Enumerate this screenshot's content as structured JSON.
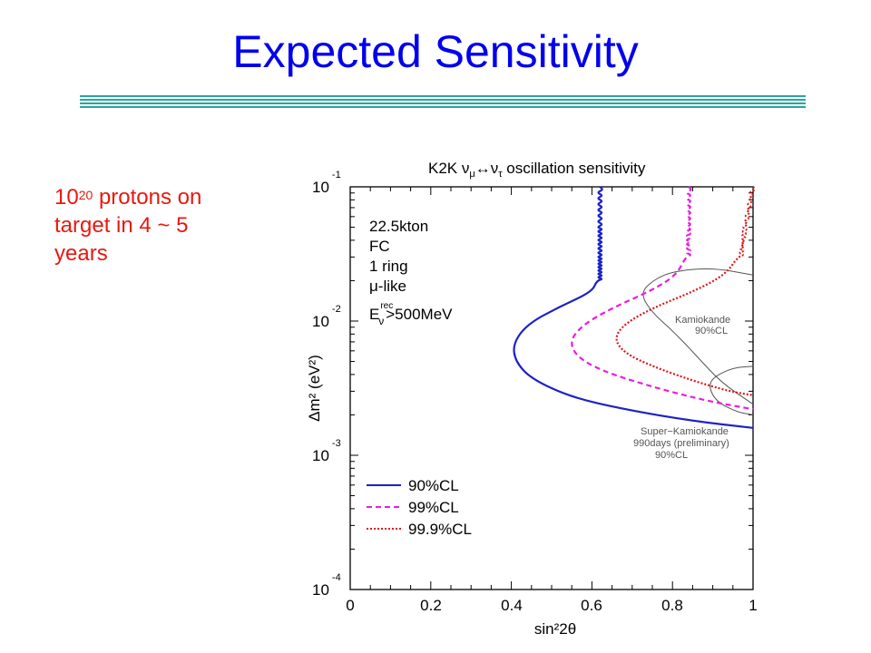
{
  "slide": {
    "title": "Expected Sensitivity",
    "note": {
      "base": "10",
      "exponent": "20",
      "text_line1": " protons on",
      "text_line2": "target in 4 ~ 5",
      "text_line3": "years"
    }
  },
  "colors": {
    "title": "#0000ee",
    "note": "#e8180f",
    "rule": "#2aa4a4",
    "cl90": "#1c22c8",
    "cl99": "#e81ee0",
    "cl999": "#e01818",
    "reference": "#555555"
  },
  "chart_data": {
    "type": "line",
    "title": "K2K ν_μ↔ν_τ oscillation sensitivity",
    "title_parts": {
      "prefix": "K2K ν",
      "sub1": "μ",
      "arrow": "↔ν",
      "sub2": "τ",
      "suffix": " oscillation sensitivity"
    },
    "xlabel": "sin²2θ",
    "ylabel": "Δm² (eV²)",
    "xlim": [
      0,
      1
    ],
    "ylim": [
      0.0001,
      0.1
    ],
    "yscale": "log",
    "x_ticks": [
      "0",
      "0.2",
      "0.4",
      "0.6",
      "0.8",
      "1"
    ],
    "y_ticks": [
      {
        "base": "10",
        "exp": "-1"
      },
      {
        "base": "10",
        "exp": "-2"
      },
      {
        "base": "10",
        "exp": "-3"
      },
      {
        "base": "10",
        "exp": "-4"
      }
    ],
    "conditions": {
      "line1": "22.5kton",
      "line2": "FC",
      "line3": "1 ring",
      "line4": "μ-like",
      "line5_main": "E",
      "line5_sup": "rec",
      "line5_sub": "ν",
      "line5_rest": ">500MeV"
    },
    "legend": [
      {
        "label": "90%CL",
        "style": "solid"
      },
      {
        "label": "99%CL",
        "style": "dashed"
      },
      {
        "label": "99.9%CL",
        "style": "dotted"
      }
    ],
    "series": [
      {
        "name": "90%CL",
        "points": [
          [
            0.62,
            0.1
          ],
          [
            0.62,
            0.05
          ],
          [
            0.62,
            0.03
          ],
          [
            0.62,
            0.02
          ],
          [
            0.6,
            0.0165
          ],
          [
            0.52,
            0.0128
          ],
          [
            0.44,
            0.0095
          ],
          [
            0.404,
            0.0068
          ],
          [
            0.41,
            0.005
          ],
          [
            0.45,
            0.0037
          ],
          [
            0.55,
            0.0027
          ],
          [
            0.68,
            0.0022
          ],
          [
            0.85,
            0.0018
          ],
          [
            1.0,
            0.0016
          ]
        ]
      },
      {
        "name": "99%CL",
        "points": [
          [
            0.84,
            0.1
          ],
          [
            0.84,
            0.05
          ],
          [
            0.84,
            0.03
          ],
          [
            0.81,
            0.022
          ],
          [
            0.75,
            0.017
          ],
          [
            0.65,
            0.0125
          ],
          [
            0.58,
            0.0095
          ],
          [
            0.545,
            0.0072
          ],
          [
            0.56,
            0.0055
          ],
          [
            0.62,
            0.0043
          ],
          [
            0.74,
            0.0033
          ],
          [
            0.87,
            0.0026
          ],
          [
            1.0,
            0.0022
          ]
        ]
      },
      {
        "name": "99.9%CL",
        "points": [
          [
            1.0,
            0.1
          ],
          [
            0.98,
            0.05
          ],
          [
            0.97,
            0.03
          ],
          [
            0.93,
            0.022
          ],
          [
            0.85,
            0.0165
          ],
          [
            0.75,
            0.0125
          ],
          [
            0.68,
            0.0095
          ],
          [
            0.655,
            0.0074
          ],
          [
            0.68,
            0.0058
          ],
          [
            0.75,
            0.0046
          ],
          [
            0.85,
            0.0036
          ],
          [
            0.94,
            0.003
          ],
          [
            1.0,
            0.0028
          ]
        ]
      }
    ],
    "reference_contours": [
      {
        "name": "Kamiokande 90%CL",
        "label_line1": "Kamiokande",
        "label_line2": "90%CL",
        "points": [
          [
            1.0,
            0.022
          ],
          [
            0.9,
            0.025
          ],
          [
            0.8,
            0.0235
          ],
          [
            0.75,
            0.02
          ],
          [
            0.72,
            0.016
          ],
          [
            0.75,
            0.0115
          ],
          [
            0.8,
            0.0085
          ],
          [
            0.86,
            0.0055
          ],
          [
            0.92,
            0.0035
          ],
          [
            1.0,
            0.0024
          ]
        ]
      },
      {
        "name": "Super-Kamiokande 990days (preliminary) 90%CL",
        "label_line1": "Super−Kamiokande",
        "label_line2": "990days (preliminary)",
        "label_line3": "90%CL",
        "points": [
          [
            1.0,
            0.0046
          ],
          [
            0.95,
            0.0045
          ],
          [
            0.9,
            0.0038
          ],
          [
            0.89,
            0.0032
          ],
          [
            0.91,
            0.0025
          ],
          [
            0.96,
            0.0021
          ],
          [
            1.0,
            0.002
          ]
        ]
      }
    ]
  }
}
